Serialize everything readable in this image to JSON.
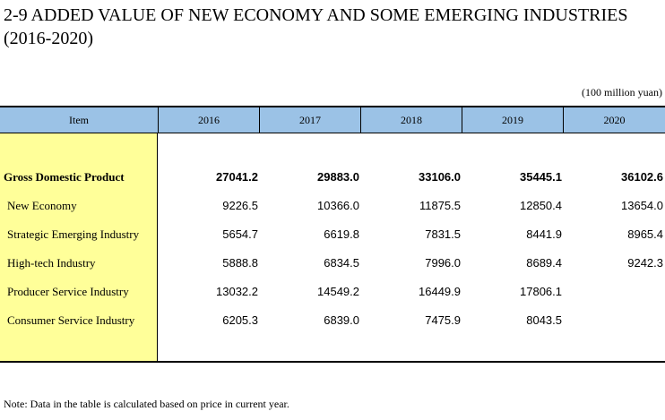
{
  "title": "2-9  ADDED VALUE OF NEW ECONOMY AND SOME EMERGING INDUSTRIES (2016-2020)",
  "unit": "(100 million yuan)",
  "table": {
    "headers": [
      "Item",
      "2016",
      "2017",
      "2018",
      "2019",
      "2020"
    ],
    "rows": [
      {
        "label": "Gross Domestic Product",
        "values": [
          "27041.2",
          "29883.0",
          "33106.0",
          "35445.1",
          "36102.6"
        ]
      },
      {
        "label": "New Economy",
        "values": [
          "9226.5",
          "10366.0",
          "11875.5",
          "12850.4",
          "13654.0"
        ]
      },
      {
        "label": "Strategic Emerging Industry",
        "values": [
          "5654.7",
          "6619.8",
          "7831.5",
          "8441.9",
          "8965.4"
        ]
      },
      {
        "label": "High-tech Industry",
        "values": [
          "5888.8",
          "6834.5",
          "7996.0",
          "8689.4",
          "9242.3"
        ]
      },
      {
        "label": "Producer Service Industry",
        "values": [
          "13032.2",
          "14549.2",
          "16449.9",
          "17806.1",
          ""
        ]
      },
      {
        "label": "Consumer Service Industry",
        "values": [
          "6205.3",
          "6839.0",
          "7475.9",
          "8043.5",
          ""
        ]
      }
    ]
  },
  "note": "Note: Data in the table is calculated based on price in current year."
}
